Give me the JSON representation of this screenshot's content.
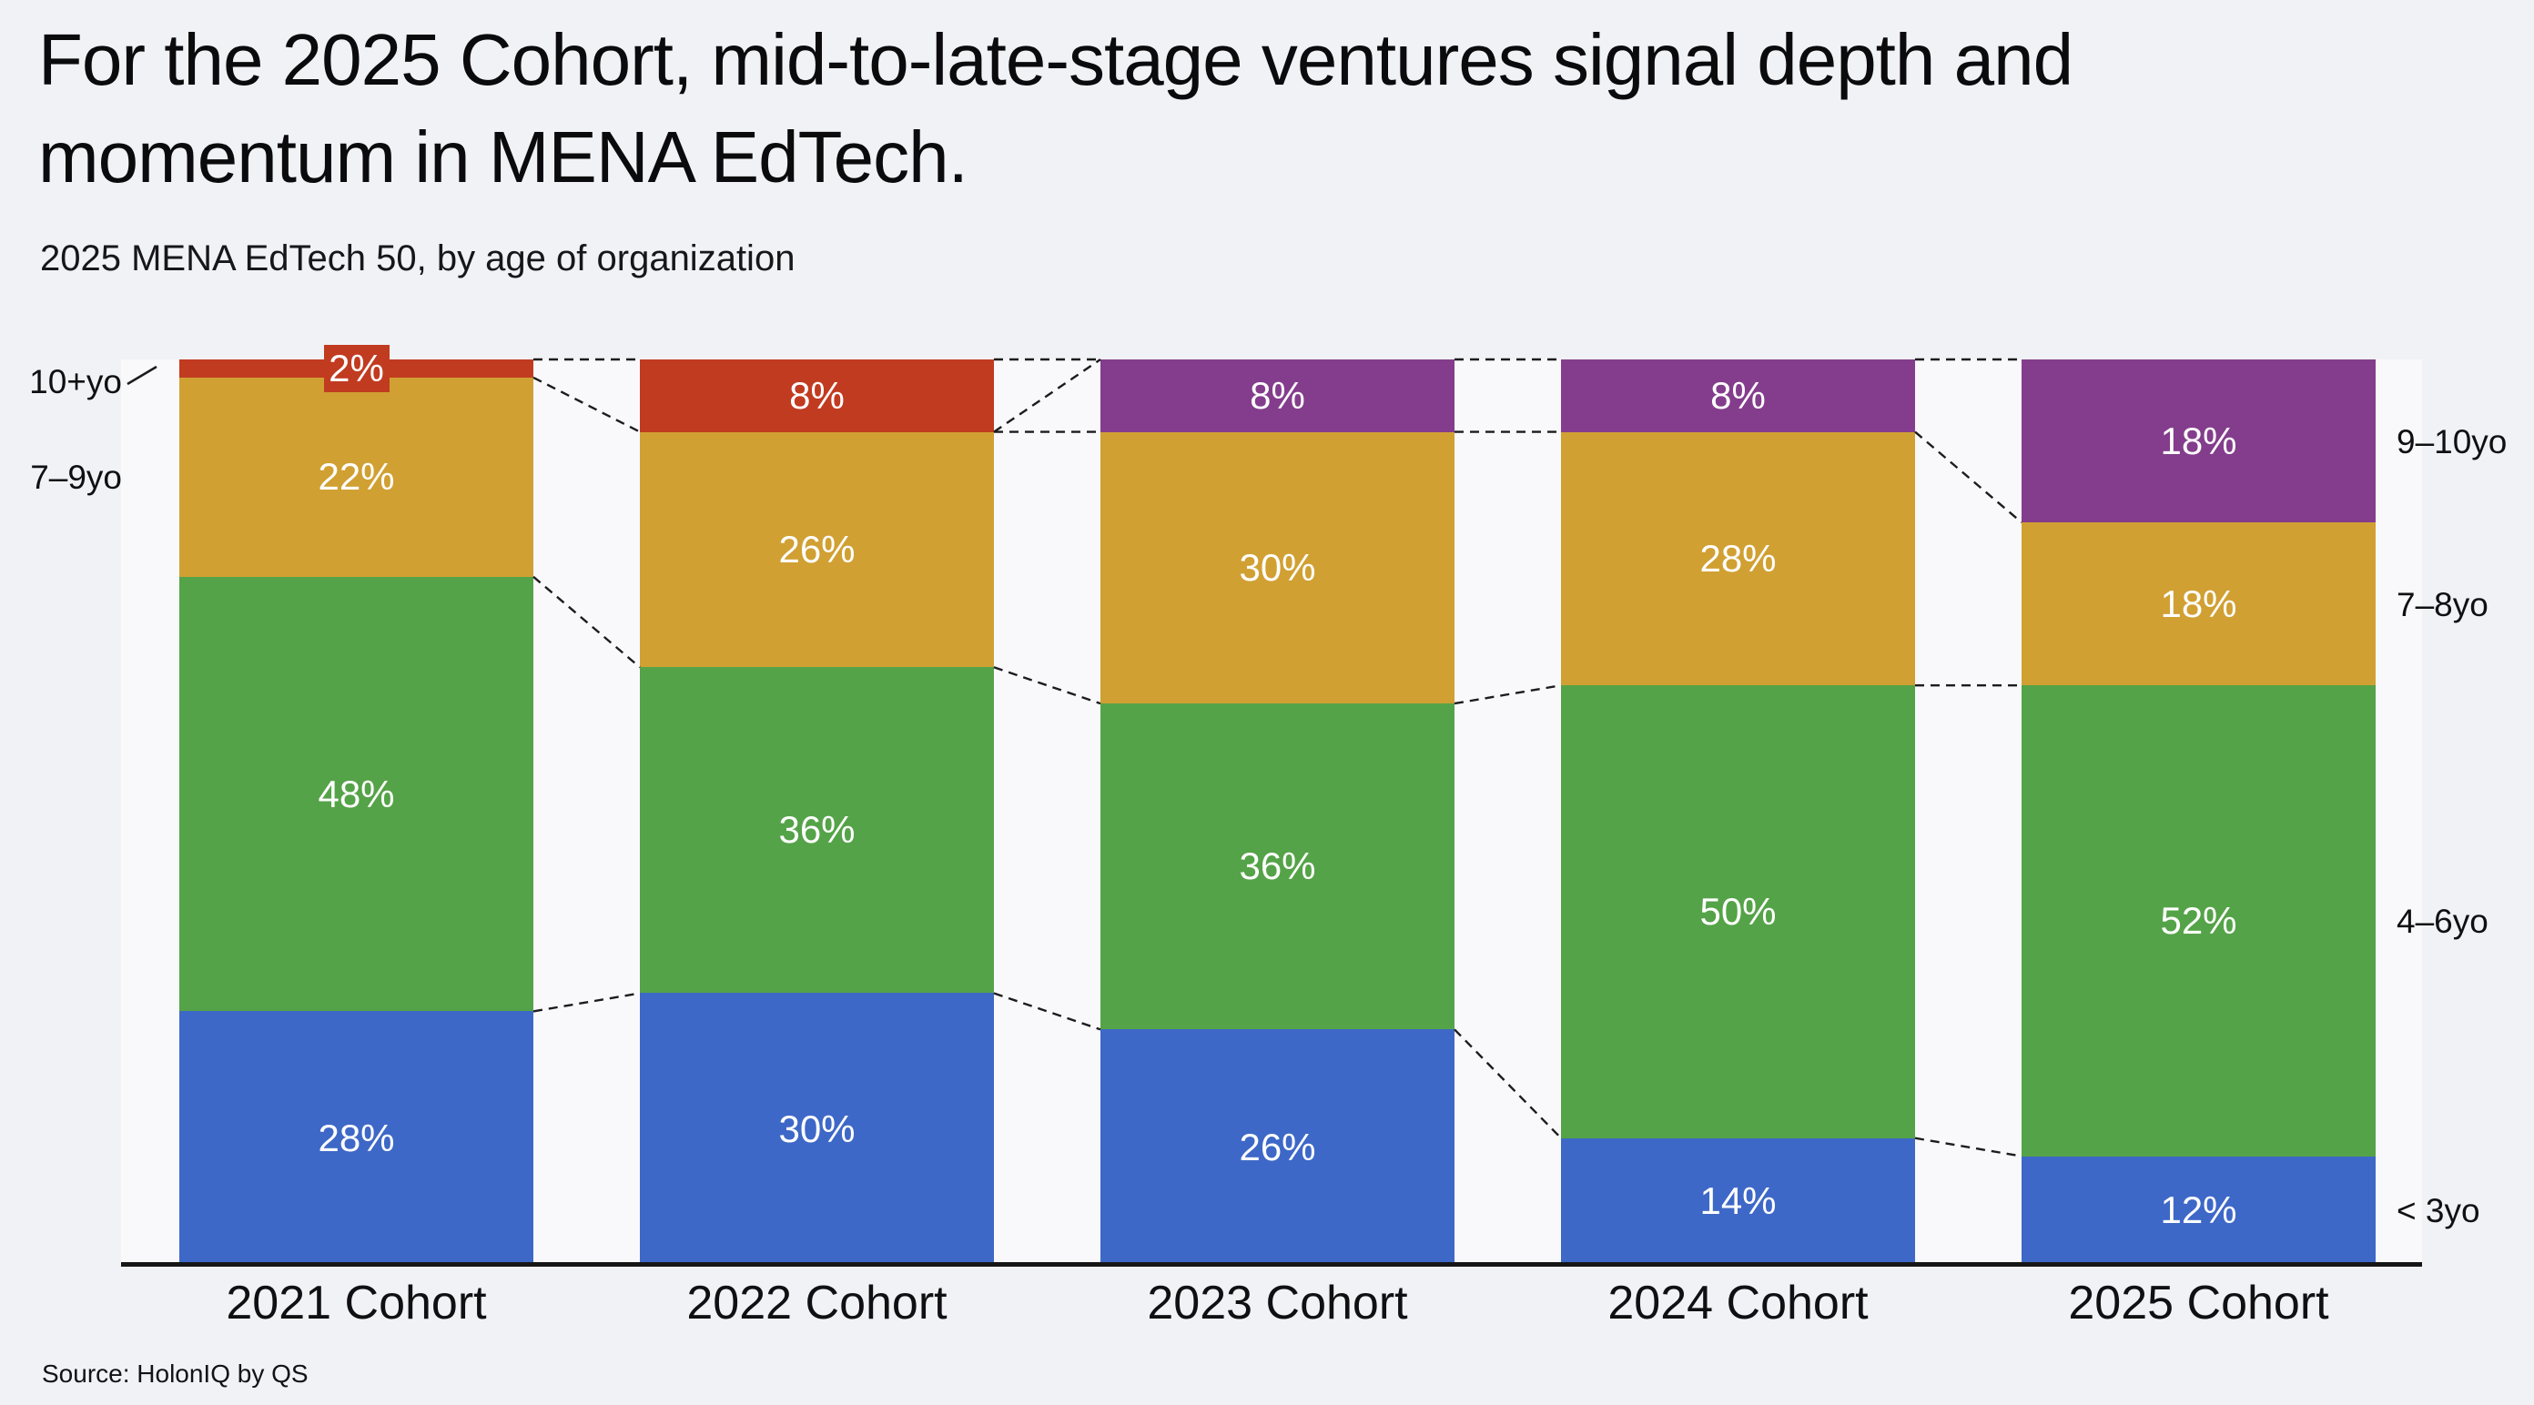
{
  "page": {
    "title": "For the 2025 Cohort, mid-to-late-stage ventures signal depth and\nmomentum in MENA EdTech.",
    "subtitle": "2025 MENA EdTech 50, by age of organization",
    "source": "Source: HolonIQ by QS",
    "background_color": "#F1F2F6"
  },
  "chart_data": {
    "type": "bar",
    "stacked": true,
    "unit": "percent of cohort",
    "title": "2025 MENA EdTech 50, by age of organization",
    "categories": [
      "2021 Cohort",
      "2022 Cohort",
      "2023 Cohort",
      "2024 Cohort",
      "2025 Cohort"
    ],
    "series": [
      {
        "name": "10+yo / 9–10yo (oldest organizations, top segment)",
        "values": [
          2,
          8,
          8,
          8,
          18
        ],
        "labels": [
          "2%",
          "8%",
          "8%",
          "8%",
          "18%"
        ],
        "colors": [
          "red",
          "red",
          "purple",
          "purple",
          "purple"
        ]
      },
      {
        "name": "7–9yo / 7–8yo",
        "values": [
          22,
          26,
          30,
          28,
          18
        ],
        "labels": [
          "22%",
          "26%",
          "30%",
          "28%",
          "18%"
        ],
        "colors": [
          "gold",
          "gold",
          "gold",
          "gold",
          "gold"
        ]
      },
      {
        "name": "4–6yo",
        "values": [
          48,
          36,
          36,
          50,
          52
        ],
        "labels": [
          "48%",
          "36%",
          "36%",
          "50%",
          "52%"
        ],
        "colors": [
          "green",
          "green",
          "green",
          "green",
          "green"
        ]
      },
      {
        "name": "< 3yo",
        "values": [
          28,
          30,
          26,
          14,
          12
        ],
        "labels": [
          "28%",
          "30%",
          "26%",
          "14%",
          "12%"
        ],
        "colors": [
          "blue",
          "blue",
          "blue",
          "blue",
          "blue"
        ]
      }
    ],
    "palette": {
      "red": "#C13B21",
      "gold": "#D1A033",
      "green": "#55A348",
      "blue": "#3E68C7",
      "purple": "#843D8C"
    },
    "callout": {
      "category_index": 0,
      "series_index": 0,
      "label": "2%"
    },
    "left_axis_labels": [
      {
        "text": "10+yo",
        "series_index": 0,
        "leader_tick": true
      },
      {
        "text": "7–9yo",
        "series_index": 1
      }
    ],
    "right_axis_labels": [
      {
        "text": "9–10yo",
        "series_index": 0
      },
      {
        "text": "7–8yo",
        "series_index": 1
      },
      {
        "text": "4–6yo",
        "series_index": 2
      },
      {
        "text": "< 3yo",
        "series_index": 3
      }
    ],
    "connectors": [
      {
        "gap": 0,
        "from_pct": 0,
        "to_pct": 0
      },
      {
        "gap": 0,
        "from_pct": 2,
        "to_pct": 8
      },
      {
        "gap": 0,
        "from_pct": 24,
        "to_pct": 34
      },
      {
        "gap": 0,
        "from_pct": 72,
        "to_pct": 70
      },
      {
        "gap": 1,
        "from_pct": 0,
        "to_pct": 0
      },
      {
        "gap": 1,
        "from_pct": 8,
        "to_pct": 0
      },
      {
        "gap": 1,
        "from_pct": 8,
        "to_pct": 8
      },
      {
        "gap": 1,
        "from_pct": 34,
        "to_pct": 38
      },
      {
        "gap": 1,
        "from_pct": 70,
        "to_pct": 74
      },
      {
        "gap": 2,
        "from_pct": 0,
        "to_pct": 0
      },
      {
        "gap": 2,
        "from_pct": 8,
        "to_pct": 8
      },
      {
        "gap": 2,
        "from_pct": 38,
        "to_pct": 36
      },
      {
        "gap": 2,
        "from_pct": 74,
        "to_pct": 86
      },
      {
        "gap": 3,
        "from_pct": 0,
        "to_pct": 0
      },
      {
        "gap": 3,
        "from_pct": 8,
        "to_pct": 18
      },
      {
        "gap": 3,
        "from_pct": 36,
        "to_pct": 36
      },
      {
        "gap": 3,
        "from_pct": 86,
        "to_pct": 88
      }
    ],
    "ylim": [
      0,
      100
    ],
    "grid": false,
    "legend": false
  }
}
